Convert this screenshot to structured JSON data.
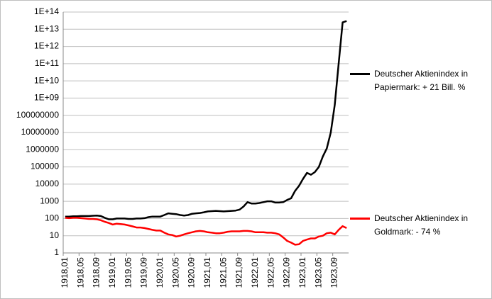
{
  "chart_data": {
    "type": "line",
    "log_scale": true,
    "grid": true,
    "legend": "right",
    "categories": [
      "1918,01",
      null,
      null,
      null,
      "1918,05",
      null,
      null,
      null,
      "1918,09",
      null,
      null,
      null,
      "1919,01",
      null,
      null,
      null,
      "1919,05",
      null,
      null,
      null,
      "1919,09",
      null,
      null,
      null,
      "1920,01",
      null,
      null,
      null,
      "1920,05",
      null,
      null,
      null,
      "1920,09",
      null,
      null,
      null,
      "1921,01",
      null,
      null,
      null,
      "1921,05",
      null,
      null,
      null,
      "1921,09",
      null,
      null,
      null,
      "1922,01",
      null,
      null,
      null,
      "1922,05",
      null,
      null,
      null,
      "1922,09",
      null,
      null,
      null,
      "1923,01",
      null,
      null,
      null,
      "1923,05",
      null,
      null,
      null,
      "1923,09",
      null,
      null,
      null
    ],
    "series": [
      {
        "name": "Deutscher Aktienindex in Papiermark: + 21 Bill. %",
        "color": "#000000",
        "values": [
          130,
          130,
          135,
          135,
          140,
          140,
          140,
          145,
          150,
          140,
          110,
          90,
          90,
          100,
          100,
          100,
          95,
          95,
          100,
          100,
          105,
          120,
          130,
          130,
          130,
          160,
          200,
          190,
          180,
          160,
          150,
          160,
          190,
          200,
          210,
          230,
          260,
          270,
          280,
          270,
          260,
          270,
          280,
          290,
          330,
          500,
          900,
          750,
          750,
          800,
          900,
          1000,
          1000,
          850,
          850,
          900,
          1200,
          1500,
          4000,
          8000,
          20000,
          45000,
          35000,
          50000,
          100000,
          400000,
          1200000,
          10000000,
          400000000,
          100000000000,
          25000000000000,
          30000000000000
        ]
      },
      {
        "name": "Deutscher Aktienindex in Goldmark: - 74 %",
        "color": "#ff0000",
        "values": [
          110,
          105,
          110,
          110,
          105,
          100,
          95,
          95,
          90,
          80,
          65,
          55,
          45,
          50,
          48,
          45,
          40,
          35,
          30,
          30,
          28,
          25,
          22,
          20,
          20,
          15,
          12,
          11,
          9,
          10,
          12,
          14,
          16,
          18,
          19,
          18,
          16,
          15,
          14,
          14,
          15,
          17,
          18,
          18,
          18,
          19,
          19,
          18,
          16,
          16,
          16,
          15,
          15,
          14,
          12,
          8,
          5,
          4,
          3,
          3.2,
          5,
          6,
          7,
          7,
          9,
          10,
          14,
          15,
          12,
          22,
          36,
          28
        ]
      }
    ],
    "ylim": [
      1,
      100000000000000
    ],
    "yticks": [
      1,
      10,
      100,
      1000,
      10000,
      100000,
      1000000,
      10000000,
      100000000,
      {
        "value": 1000000000,
        "label": "1E+09"
      },
      {
        "value": 10000000000,
        "label": "1E+10"
      },
      {
        "value": 100000000000,
        "label": "1E+11"
      },
      {
        "value": 1000000000000,
        "label": "1E+12"
      },
      {
        "value": 10000000000000,
        "label": "1E+13"
      },
      {
        "value": 100000000000000,
        "label": "1E+14"
      }
    ]
  }
}
